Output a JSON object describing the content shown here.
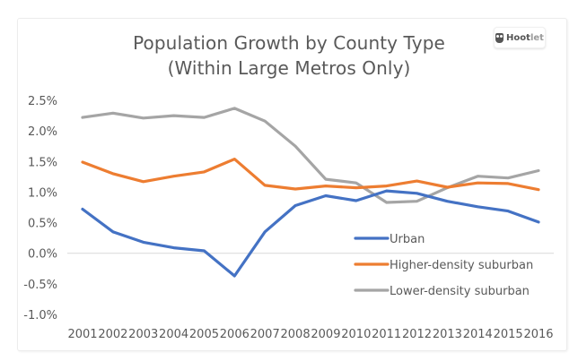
{
  "badge": {
    "brand": "Hoot",
    "brand_suffix": "let",
    "icon": "owl-icon"
  },
  "chart_data": {
    "type": "line",
    "title": "Population Growth by County Type",
    "subtitle": "(Within Large Metros Only)",
    "xlabel": "",
    "ylabel": "",
    "ylim": [
      -1.0,
      2.5
    ],
    "y_ticks": [
      "2.5%",
      "2.0%",
      "1.5%",
      "1.0%",
      "0.5%",
      "0.0%",
      "-0.5%",
      "-1.0%"
    ],
    "y_tick_values": [
      2.5,
      2.0,
      1.5,
      1.0,
      0.5,
      0.0,
      -0.5,
      -1.0
    ],
    "grid": "zero-line-only",
    "legend_position": "bottom-right (inside plot)",
    "x": [
      "2001",
      "2002",
      "2003",
      "2004",
      "2005",
      "2006",
      "2007",
      "2008",
      "2009",
      "2010",
      "2011",
      "2012",
      "2013",
      "2014",
      "2015",
      "2016"
    ],
    "series": [
      {
        "name": "Urban",
        "color": "#4472C4",
        "values": [
          0.72,
          0.35,
          0.18,
          0.09,
          0.04,
          -0.37,
          0.35,
          0.78,
          0.94,
          0.86,
          1.02,
          0.98,
          0.85,
          0.76,
          0.69,
          0.51
        ]
      },
      {
        "name": "Higher-density suburban",
        "color": "#ED7D31",
        "values": [
          1.49,
          1.3,
          1.17,
          1.26,
          1.33,
          1.54,
          1.11,
          1.05,
          1.1,
          1.07,
          1.1,
          1.18,
          1.08,
          1.15,
          1.14,
          1.04
        ]
      },
      {
        "name": "Lower-density suburban",
        "color": "#A5A5A5",
        "values": [
          2.22,
          2.29,
          2.21,
          2.25,
          2.22,
          2.37,
          2.16,
          1.75,
          1.21,
          1.15,
          0.83,
          0.85,
          1.07,
          1.26,
          1.23,
          1.35
        ]
      }
    ]
  }
}
